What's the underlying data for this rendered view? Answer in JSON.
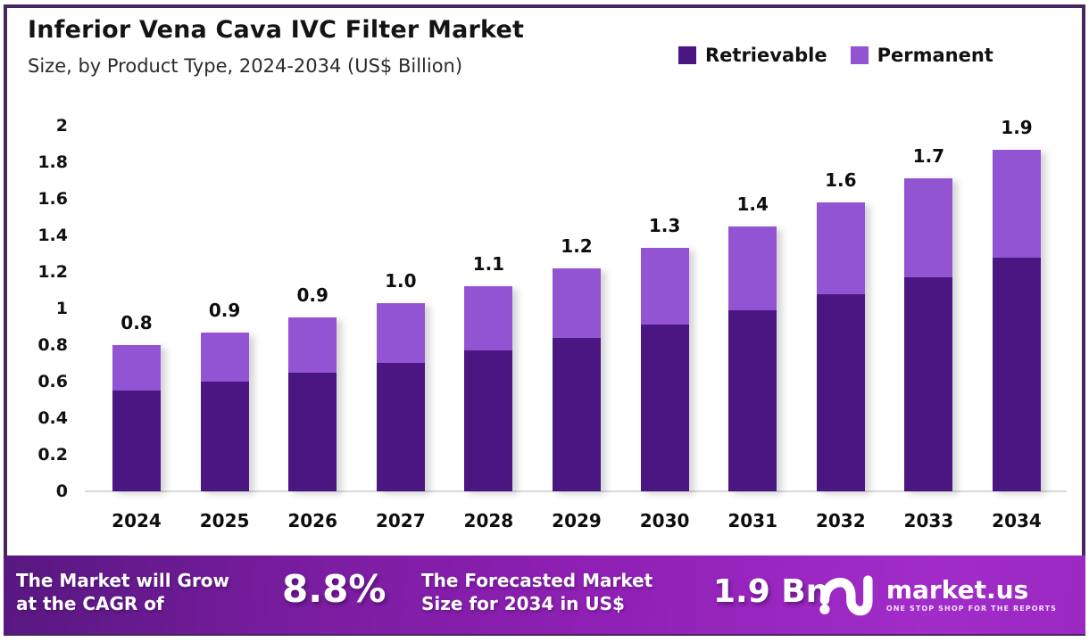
{
  "header": {
    "title": "Inferior Vena Cava IVC Filter Market",
    "subtitle": "Size, by Product Type, 2024-2034 (US$ Billion)"
  },
  "legend": {
    "items": [
      {
        "label": "Retrievable",
        "color": "#4a1682"
      },
      {
        "label": "Permanent",
        "color": "#9254d3"
      }
    ]
  },
  "chart_data": {
    "type": "bar",
    "stacked": true,
    "title": "Inferior Vena Cava IVC Filter Market",
    "subtitle": "Size, by Product Type, 2024-2034 (US$ Billion)",
    "unit": "US$ Billion",
    "categories": [
      "2024",
      "2025",
      "2026",
      "2027",
      "2028",
      "2029",
      "2030",
      "2031",
      "2032",
      "2033",
      "2034"
    ],
    "series": [
      {
        "name": "Retrievable",
        "color": "#4a1682",
        "values": [
          0.55,
          0.6,
          0.65,
          0.7,
          0.77,
          0.84,
          0.91,
          0.99,
          1.08,
          1.17,
          1.28
        ]
      },
      {
        "name": "Permanent",
        "color": "#9254d3",
        "values": [
          0.25,
          0.27,
          0.3,
          0.33,
          0.35,
          0.38,
          0.42,
          0.46,
          0.5,
          0.54,
          0.59
        ]
      }
    ],
    "total_labels": [
      "0.8",
      "0.9",
      "0.9",
      "1.0",
      "1.1",
      "1.2",
      "1.3",
      "1.4",
      "1.6",
      "1.7",
      "1.9"
    ],
    "y_axis": {
      "min": 0,
      "max": 2,
      "ticks": [
        {
          "label": "2",
          "value": 2.0
        },
        {
          "label": "1.8",
          "value": 1.8
        },
        {
          "label": "1.6",
          "value": 1.6
        },
        {
          "label": "1.4",
          "value": 1.4
        },
        {
          "label": "1.2",
          "value": 1.2
        },
        {
          "label": "1",
          "value": 1.0
        },
        {
          "label": "0.8",
          "value": 0.8
        },
        {
          "label": "0.6",
          "value": 0.6
        },
        {
          "label": "0.4",
          "value": 0.4
        },
        {
          "label": "0.2",
          "value": 0.2
        },
        {
          "label": "0",
          "value": 0.0
        }
      ]
    },
    "grid": false,
    "legend_position": "top-right"
  },
  "banner": {
    "cagr_label": "The Market will Grow at the CAGR of",
    "cagr_value": "8.8%",
    "forecast_label": "The Forecasted Market Size for 2034 in US$",
    "forecast_value": "1.9 Bn",
    "brand": {
      "name": "market.us",
      "tagline": "ONE STOP SHOP FOR THE REPORTS"
    }
  },
  "frame": {
    "border_color": "#45265e"
  }
}
